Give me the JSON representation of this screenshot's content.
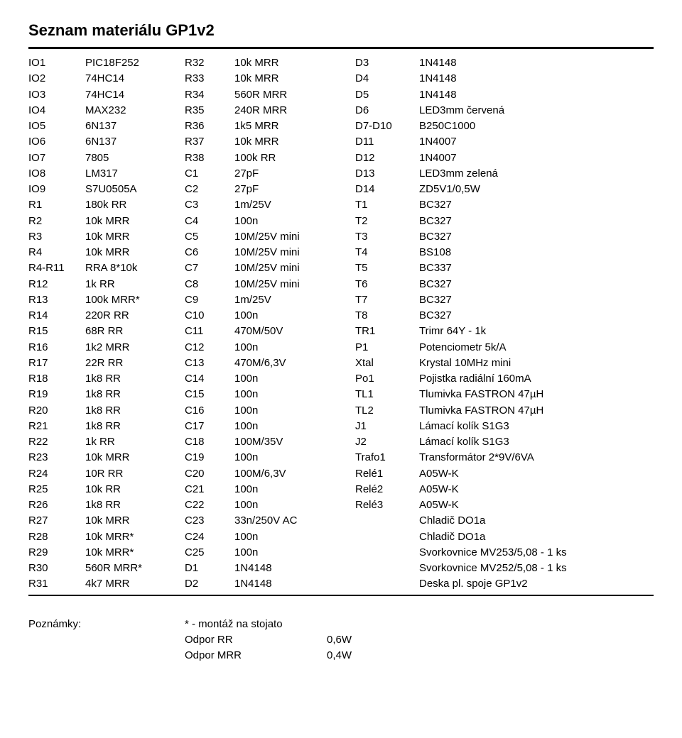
{
  "title": "Seznam materiálu GP1v2",
  "col1": [
    {
      "ref": "IO1",
      "val": "PIC18F252"
    },
    {
      "ref": "IO2",
      "val": "74HC14"
    },
    {
      "ref": "IO3",
      "val": "74HC14"
    },
    {
      "ref": "IO4",
      "val": "MAX232"
    },
    {
      "ref": "IO5",
      "val": "6N137"
    },
    {
      "ref": "IO6",
      "val": "6N137"
    },
    {
      "ref": "IO7",
      "val": "7805"
    },
    {
      "ref": "IO8",
      "val": "LM317"
    },
    {
      "ref": "IO9",
      "val": "S7U0505A"
    },
    {
      "ref": "R1",
      "val": "180k RR"
    },
    {
      "ref": "R2",
      "val": "10k MRR"
    },
    {
      "ref": "R3",
      "val": "10k MRR"
    },
    {
      "ref": "R4",
      "val": "10k MRR"
    },
    {
      "ref": "R4-R11",
      "val": "RRA 8*10k"
    },
    {
      "ref": "R12",
      "val": "1k RR"
    },
    {
      "ref": "R13",
      "val": "100k MRR*"
    },
    {
      "ref": "R14",
      "val": "220R RR"
    },
    {
      "ref": "R15",
      "val": "68R RR"
    },
    {
      "ref": "R16",
      "val": "1k2 MRR"
    },
    {
      "ref": "R17",
      "val": "22R RR"
    },
    {
      "ref": "R18",
      "val": "1k8 RR"
    },
    {
      "ref": "R19",
      "val": "1k8 RR"
    },
    {
      "ref": "R20",
      "val": "1k8 RR"
    },
    {
      "ref": "R21",
      "val": "1k8 RR"
    },
    {
      "ref": "R22",
      "val": "1k  RR"
    },
    {
      "ref": "R23",
      "val": "10k MRR"
    },
    {
      "ref": "R24",
      "val": "10R RR"
    },
    {
      "ref": "R25",
      "val": "10k RR"
    },
    {
      "ref": "R26",
      "val": "1k8 RR"
    },
    {
      "ref": "R27",
      "val": "10k MRR"
    },
    {
      "ref": "R28",
      "val": "10k MRR*"
    },
    {
      "ref": "R29",
      "val": "10k MRR*"
    },
    {
      "ref": "R30",
      "val": "560R MRR*"
    },
    {
      "ref": "R31",
      "val": "4k7 MRR"
    }
  ],
  "col2": [
    {
      "ref": "R32",
      "val": "10k MRR"
    },
    {
      "ref": "R33",
      "val": "10k MRR"
    },
    {
      "ref": "R34",
      "val": "560R MRR"
    },
    {
      "ref": "R35",
      "val": "240R MRR"
    },
    {
      "ref": "R36",
      "val": "1k5 MRR"
    },
    {
      "ref": "R37",
      "val": "10k MRR"
    },
    {
      "ref": "R38",
      "val": "100k RR"
    },
    {
      "ref": "C1",
      "val": "27pF"
    },
    {
      "ref": "C2",
      "val": "27pF"
    },
    {
      "ref": "C3",
      "val": "1m/25V"
    },
    {
      "ref": "C4",
      "val": "100n"
    },
    {
      "ref": "C5",
      "val": "10M/25V mini"
    },
    {
      "ref": "C6",
      "val": "10M/25V mini"
    },
    {
      "ref": "C7",
      "val": "10M/25V mini"
    },
    {
      "ref": "C8",
      "val": "10M/25V mini"
    },
    {
      "ref": "C9",
      "val": "1m/25V"
    },
    {
      "ref": "C10",
      "val": "100n"
    },
    {
      "ref": "C11",
      "val": "470M/50V"
    },
    {
      "ref": "C12",
      "val": "100n"
    },
    {
      "ref": "C13",
      "val": "470M/6,3V"
    },
    {
      "ref": "C14",
      "val": "100n"
    },
    {
      "ref": "C15",
      "val": "100n"
    },
    {
      "ref": "C16",
      "val": "100n"
    },
    {
      "ref": "C17",
      "val": "100n"
    },
    {
      "ref": "C18",
      "val": "100M/35V"
    },
    {
      "ref": "C19",
      "val": "100n"
    },
    {
      "ref": "C20",
      "val": "100M/6,3V"
    },
    {
      "ref": "C21",
      "val": "100n"
    },
    {
      "ref": "C22",
      "val": "100n"
    },
    {
      "ref": "C23",
      "val": "33n/250V AC"
    },
    {
      "ref": "C24",
      "val": "100n"
    },
    {
      "ref": "C25",
      "val": "100n"
    },
    {
      "ref": "D1",
      "val": "1N4148"
    },
    {
      "ref": "D2",
      "val": "1N4148"
    }
  ],
  "col3": [
    {
      "ref": "D3",
      "val": "1N4148"
    },
    {
      "ref": "D4",
      "val": "1N4148"
    },
    {
      "ref": "D5",
      "val": "1N4148"
    },
    {
      "ref": "D6",
      "val": "LED3mm červená"
    },
    {
      "ref": "D7-D10",
      "val": "B250C1000"
    },
    {
      "ref": "D11",
      "val": "1N4007"
    },
    {
      "ref": "D12",
      "val": "1N4007"
    },
    {
      "ref": "D13",
      "val": "LED3mm zelená"
    },
    {
      "ref": "D14",
      "val": "ZD5V1/0,5W"
    },
    {
      "ref": "T1",
      "val": "BC327"
    },
    {
      "ref": "T2",
      "val": "BC327"
    },
    {
      "ref": "T3",
      "val": "BC327"
    },
    {
      "ref": "T4",
      "val": "BS108"
    },
    {
      "ref": "T5",
      "val": "BC337"
    },
    {
      "ref": "T6",
      "val": "BC327"
    },
    {
      "ref": "T7",
      "val": "BC327"
    },
    {
      "ref": "T8",
      "val": "BC327"
    },
    {
      "ref": "TR1",
      "val": "Trimr 64Y - 1k"
    },
    {
      "ref": "P1",
      "val": "Potenciometr 5k/A"
    },
    {
      "ref": "Xtal",
      "val": "Krystal 10MHz mini"
    },
    {
      "ref": "Po1",
      "val": "Pojistka radiální 160mA"
    },
    {
      "ref": "TL1",
      "val": "Tlumivka FASTRON 47µH"
    },
    {
      "ref": "TL2",
      "val": "Tlumivka FASTRON 47µH"
    },
    {
      "ref": "J1",
      "val": "Lámací kolík S1G3"
    },
    {
      "ref": "J2",
      "val": "Lámací kolík S1G3"
    },
    {
      "ref": "Trafo1",
      "val": "Transformátor 2*9V/6VA"
    },
    {
      "ref": "Relé1",
      "val": "A05W-K"
    },
    {
      "ref": "Relé2",
      "val": "A05W-K"
    },
    {
      "ref": "Relé3",
      "val": "A05W-K"
    },
    {
      "ref": "",
      "val": "Chladič DO1a"
    },
    {
      "ref": "",
      "val": "Chladič DO1a"
    },
    {
      "ref": "",
      "val": "Svorkovnice MV253/5,08 - 1 ks"
    },
    {
      "ref": "",
      "val": "Svorkovnice MV252/5,08 - 1 ks"
    },
    {
      "ref": "",
      "val": "Deska pl. spoje GP1v2"
    }
  ],
  "notes": {
    "label": "Poznámky:",
    "rows": [
      {
        "a": "* - montáž na stojato",
        "b": ""
      },
      {
        "a": "Odpor RR",
        "b": "0,6W"
      },
      {
        "a": "Odpor MRR",
        "b": "0,4W"
      }
    ]
  }
}
